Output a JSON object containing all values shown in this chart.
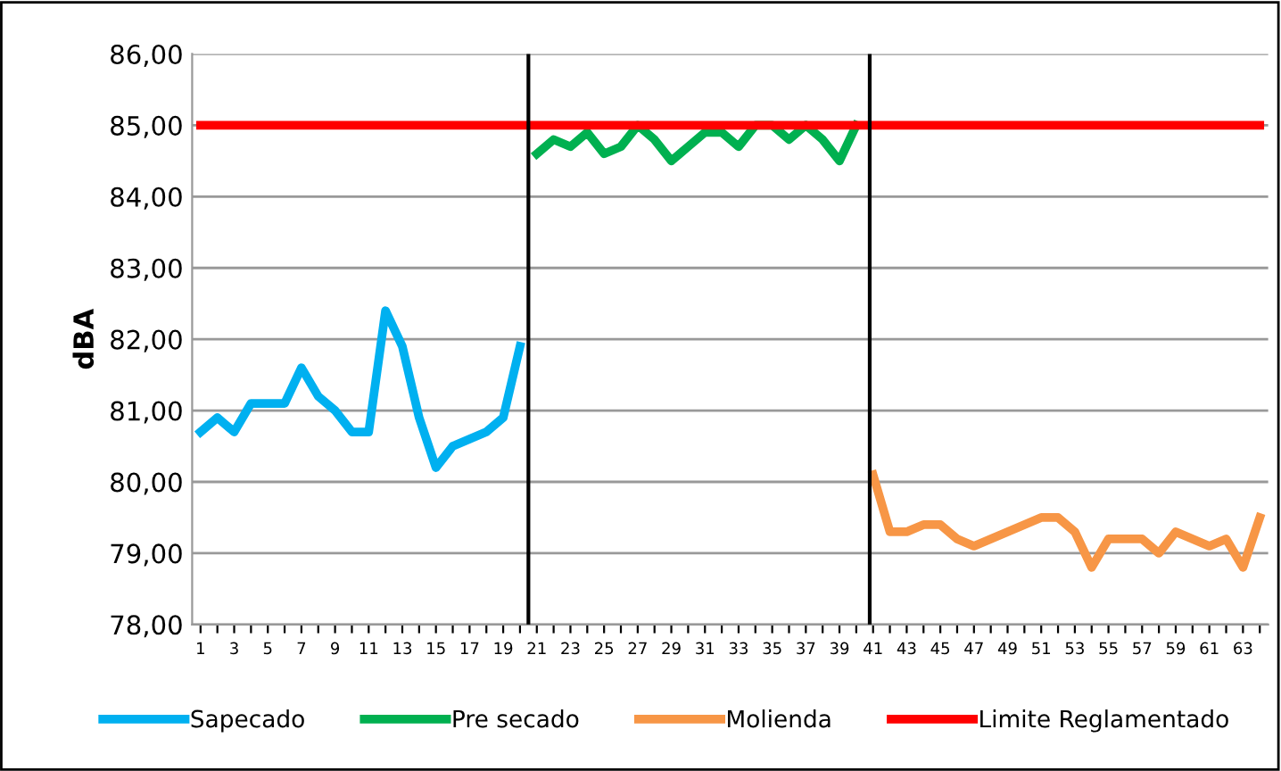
{
  "chart_data": {
    "type": "line",
    "ylabel": "dBA",
    "series": [
      {
        "name": "Sapecado",
        "color": "#00b0f0",
        "x": [
          1,
          2,
          3,
          4,
          5,
          6,
          7,
          8,
          9,
          10,
          11,
          12,
          13,
          14,
          15,
          16,
          17,
          18,
          19,
          20
        ],
        "values": [
          80.7,
          80.9,
          80.7,
          81.1,
          81.1,
          81.1,
          81.6,
          81.2,
          81.0,
          80.7,
          80.7,
          82.4,
          81.9,
          80.9,
          80.2,
          80.5,
          80.6,
          80.7,
          80.9,
          81.9
        ]
      },
      {
        "name": "Pre secado",
        "color": "#00b050",
        "x": [
          21,
          22,
          23,
          24,
          25,
          26,
          27,
          28,
          29,
          30,
          31,
          32,
          33,
          34,
          35,
          36,
          37,
          38,
          39,
          40
        ],
        "values": [
          84.6,
          84.8,
          84.7,
          84.9,
          84.6,
          84.7,
          85.0,
          84.8,
          84.5,
          84.7,
          84.9,
          84.9,
          84.7,
          85.0,
          85.0,
          84.8,
          85.0,
          84.8,
          84.5,
          85.0
        ]
      },
      {
        "name": "Molienda",
        "color": "#f79646",
        "x": [
          41,
          42,
          43,
          44,
          45,
          46,
          47,
          48,
          49,
          50,
          51,
          52,
          53,
          54,
          55,
          56,
          57,
          58,
          59,
          60,
          61,
          62,
          63,
          64
        ],
        "values": [
          80.1,
          79.3,
          79.3,
          79.4,
          79.4,
          79.2,
          79.1,
          79.2,
          79.3,
          79.4,
          79.5,
          79.5,
          79.3,
          78.8,
          79.2,
          79.2,
          79.2,
          79.0,
          79.3,
          79.2,
          79.1,
          79.2,
          78.8,
          79.5
        ]
      },
      {
        "name": "Limite Reglamentado",
        "color": "#ff0000",
        "x": [
          1,
          2,
          3,
          4,
          5,
          6,
          7,
          8,
          9,
          10,
          11,
          12,
          13,
          14,
          15,
          16,
          17,
          18,
          19,
          20,
          21,
          22,
          23,
          24,
          25,
          26,
          27,
          28,
          29,
          30,
          31,
          32,
          33,
          34,
          35,
          36,
          37,
          38,
          39,
          40,
          41,
          42,
          43,
          44,
          45,
          46,
          47,
          48,
          49,
          50,
          51,
          52,
          53,
          54,
          55,
          56,
          57,
          58,
          59,
          60,
          61,
          62,
          63,
          64
        ],
        "values": [
          85,
          85,
          85,
          85,
          85,
          85,
          85,
          85,
          85,
          85,
          85,
          85,
          85,
          85,
          85,
          85,
          85,
          85,
          85,
          85,
          85,
          85,
          85,
          85,
          85,
          85,
          85,
          85,
          85,
          85,
          85,
          85,
          85,
          85,
          85,
          85,
          85,
          85,
          85,
          85,
          85,
          85,
          85,
          85,
          85,
          85,
          85,
          85,
          85,
          85,
          85,
          85,
          85,
          85,
          85,
          85,
          85,
          85,
          85,
          85,
          85,
          85,
          85,
          85
        ]
      }
    ],
    "ref_lines": [
      {
        "axis": "x",
        "value": 20.5,
        "color": "#000000"
      },
      {
        "axis": "x",
        "value": 40.8,
        "color": "#000000"
      }
    ],
    "xlim": [
      0.5,
      64.5
    ],
    "xticks": [
      1,
      {
        "value": 2,
        "label": null
      },
      3,
      {
        "value": 4,
        "label": null
      },
      5,
      {
        "value": 6,
        "label": null
      },
      7,
      {
        "value": 8,
        "label": null
      },
      9,
      {
        "value": 10,
        "label": null
      },
      11,
      {
        "value": 12,
        "label": null
      },
      13,
      {
        "value": 14,
        "label": null
      },
      15,
      {
        "value": 16,
        "label": null
      },
      17,
      {
        "value": 18,
        "label": null
      },
      19,
      {
        "value": 20,
        "label": null
      },
      21,
      {
        "value": 22,
        "label": null
      },
      23,
      {
        "value": 24,
        "label": null
      },
      25,
      {
        "value": 26,
        "label": null
      },
      27,
      {
        "value": 28,
        "label": null
      },
      29,
      {
        "value": 30,
        "label": null
      },
      31,
      {
        "value": 32,
        "label": null
      },
      33,
      {
        "value": 34,
        "label": null
      },
      35,
      {
        "value": 36,
        "label": null
      },
      37,
      {
        "value": 38,
        "label": null
      },
      39,
      {
        "value": 40,
        "label": null
      },
      41,
      {
        "value": 42,
        "label": null
      },
      43,
      {
        "value": 44,
        "label": null
      },
      45,
      {
        "value": 46,
        "label": null
      },
      47,
      {
        "value": 48,
        "label": null
      },
      49,
      {
        "value": 50,
        "label": null
      },
      51,
      {
        "value": 52,
        "label": null
      },
      53,
      {
        "value": 54,
        "label": null
      },
      55,
      {
        "value": 56,
        "label": null
      },
      57,
      {
        "value": 58,
        "label": null
      },
      59,
      {
        "value": 60,
        "label": null
      },
      61,
      {
        "value": 62,
        "label": null
      },
      63,
      {
        "value": 64,
        "label": null
      }
    ],
    "ylim": [
      78,
      86
    ],
    "yticks": [
      {
        "value": 78,
        "label": "78,00"
      },
      {
        "value": 79,
        "label": "79,00"
      },
      {
        "value": 80,
        "label": "80,00"
      },
      {
        "value": 81,
        "label": "81,00"
      },
      {
        "value": 82,
        "label": "82,00"
      },
      {
        "value": 83,
        "label": "83,00"
      },
      {
        "value": 84,
        "label": "84,00"
      },
      {
        "value": 85,
        "label": "85,00"
      },
      {
        "value": 86,
        "label": "86,00"
      }
    ],
    "grid": "y",
    "legend": "bottom",
    "marker": "none",
    "line_style": "solid"
  }
}
